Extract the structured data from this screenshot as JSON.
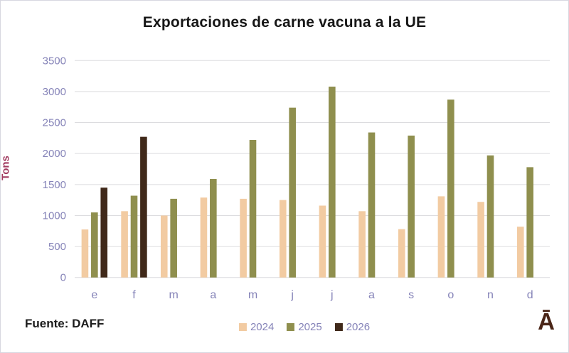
{
  "title": "Exportaciones de carne vacuna a la UE",
  "source": "Fuente: DAFF",
  "logo_text": "Ā",
  "colors": {
    "title_text": "#161616",
    "axis_labels": "#8583b8",
    "y_axis_title": "#a13a5f",
    "gridline": "#dcdcdf",
    "series_2024": "#f2cba2",
    "series_2025": "#8f8f4e",
    "series_2026": "#40291a",
    "logo": "#4a2517"
  },
  "chart_data": {
    "type": "bar",
    "title": "Exportaciones de carne vacuna a la UE",
    "xlabel": "",
    "ylabel": "Tons",
    "categories": [
      "e",
      "f",
      "m",
      "a",
      "m",
      "j",
      "j",
      "a",
      "s",
      "o",
      "n",
      "d"
    ],
    "series": [
      {
        "name": "2024",
        "color": "#f2cba2",
        "values": [
          775,
          1070,
          1000,
          1290,
          1270,
          1250,
          1160,
          1070,
          780,
          1310,
          1220,
          820
        ]
      },
      {
        "name": "2025",
        "color": "#8f8f4e",
        "values": [
          1050,
          1320,
          1270,
          1590,
          2220,
          2740,
          3080,
          2340,
          2290,
          2870,
          1970,
          1780
        ]
      },
      {
        "name": "2026",
        "color": "#40291a",
        "values": [
          1450,
          2270,
          null,
          null,
          null,
          null,
          null,
          null,
          null,
          null,
          null,
          null
        ]
      }
    ],
    "ylim": [
      0,
      3500
    ],
    "ytick_step": 500,
    "yticks": [
      0,
      500,
      1000,
      1500,
      2000,
      2500,
      3000,
      3500
    ],
    "grid": true,
    "legend_position": "bottom"
  }
}
